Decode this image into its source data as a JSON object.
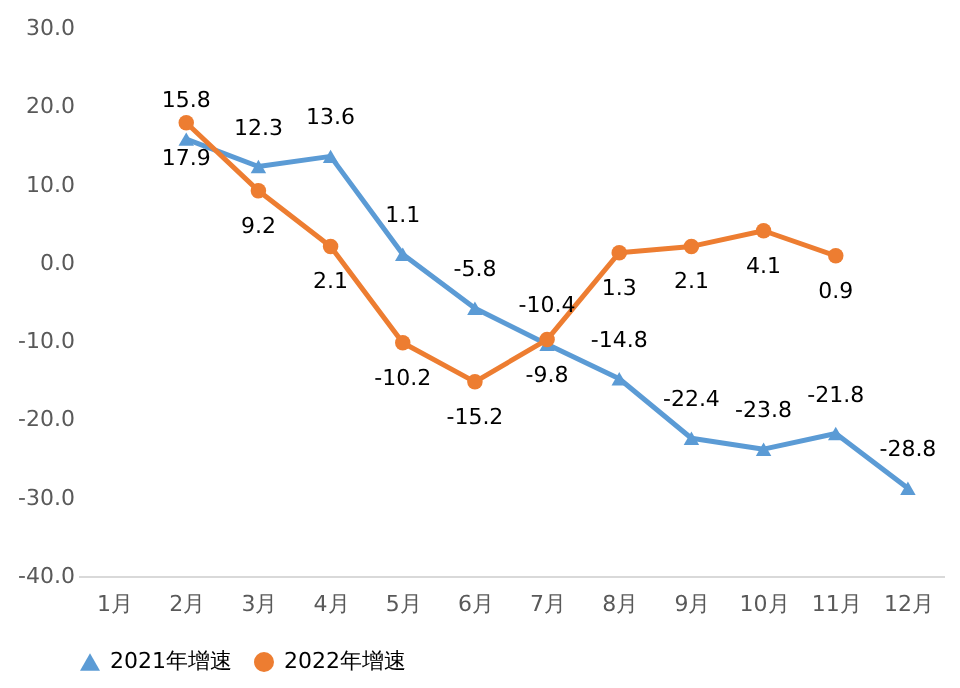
{
  "chart_data": {
    "type": "line",
    "categories": [
      "1月",
      "2月",
      "3月",
      "4月",
      "5月",
      "6月",
      "7月",
      "8月",
      "9月",
      "10月",
      "11月",
      "12月"
    ],
    "series": [
      {
        "name": "2021年增速",
        "color": "#5b9bd5",
        "marker": "triangle",
        "values": [
          null,
          15.8,
          12.3,
          13.6,
          1.1,
          -5.8,
          -10.4,
          -14.8,
          -22.4,
          -23.8,
          -21.8,
          -28.8
        ]
      },
      {
        "name": "2022年增速",
        "color": "#ed7d31",
        "marker": "circle",
        "values": [
          null,
          17.9,
          9.2,
          2.1,
          -10.2,
          -15.2,
          -9.8,
          1.3,
          2.1,
          4.1,
          0.9,
          null
        ]
      }
    ],
    "ylim": [
      -40,
      30
    ],
    "yticks": [
      {
        "value": -40,
        "label": "-40.0"
      },
      {
        "value": -30,
        "label": "-30.0"
      },
      {
        "value": -20,
        "label": "-20.0"
      },
      {
        "value": -10,
        "label": "-10.0"
      },
      {
        "value": 0,
        "label": "0.0"
      },
      {
        "value": 10,
        "label": "10.0"
      },
      {
        "value": 20,
        "label": "20.0"
      },
      {
        "value": 30,
        "label": "30.0"
      }
    ],
    "data_labels": true,
    "grid": false,
    "legend": "bottom"
  }
}
